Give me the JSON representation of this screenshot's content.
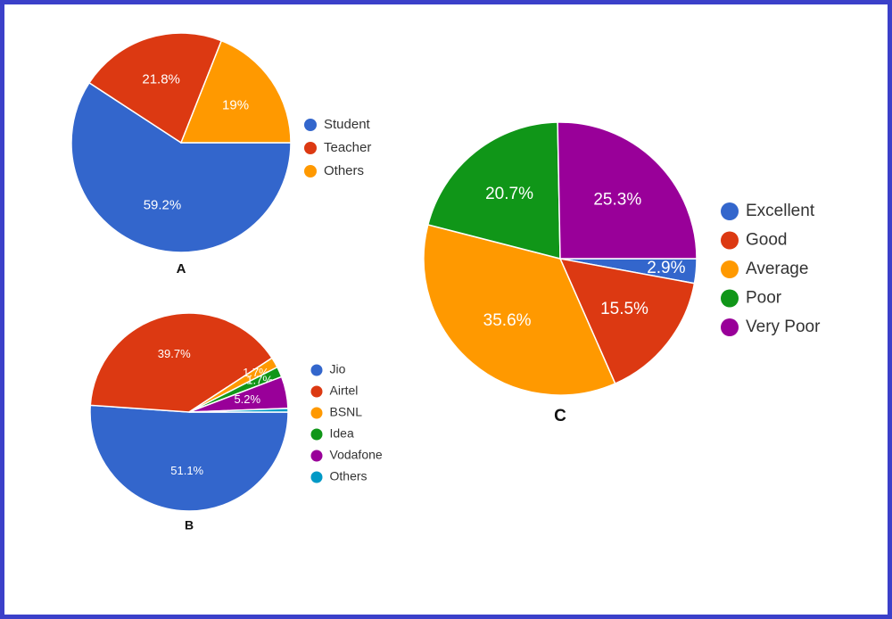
{
  "chart_data": [
    {
      "type": "pie",
      "title": "A",
      "categories": [
        "Student",
        "Teacher",
        "Others"
      ],
      "values": [
        59.2,
        21.8,
        19
      ],
      "value_labels": [
        "59.2%",
        "21.8%",
        "19%"
      ],
      "colors": [
        "#3366cc",
        "#dc3912",
        "#ff9900"
      ],
      "legend": "right"
    },
    {
      "type": "pie",
      "title": "B",
      "categories": [
        "Jio",
        "Airtel",
        "BSNL",
        "Idea",
        "Vodafone",
        "Others"
      ],
      "values": [
        51.1,
        39.7,
        1.7,
        1.7,
        5.2,
        0.6
      ],
      "value_labels": [
        "51.1%",
        "39.7%",
        "1.7%",
        "1.7%",
        "5.2%",
        null
      ],
      "colors": [
        "#3366cc",
        "#dc3912",
        "#ff9900",
        "#109618",
        "#990099",
        "#0099c6"
      ],
      "legend": "right"
    },
    {
      "type": "pie",
      "title": "C",
      "categories": [
        "Excellent",
        "Good",
        "Average",
        "Poor",
        "Very Poor"
      ],
      "values": [
        2.9,
        15.5,
        35.6,
        20.7,
        25.3
      ],
      "value_labels": [
        "2.9%",
        "15.5%",
        "35.6%",
        "20.7%",
        "25.3%"
      ],
      "colors": [
        "#3366cc",
        "#dc3912",
        "#ff9900",
        "#109618",
        "#990099"
      ],
      "legend": "right"
    }
  ]
}
